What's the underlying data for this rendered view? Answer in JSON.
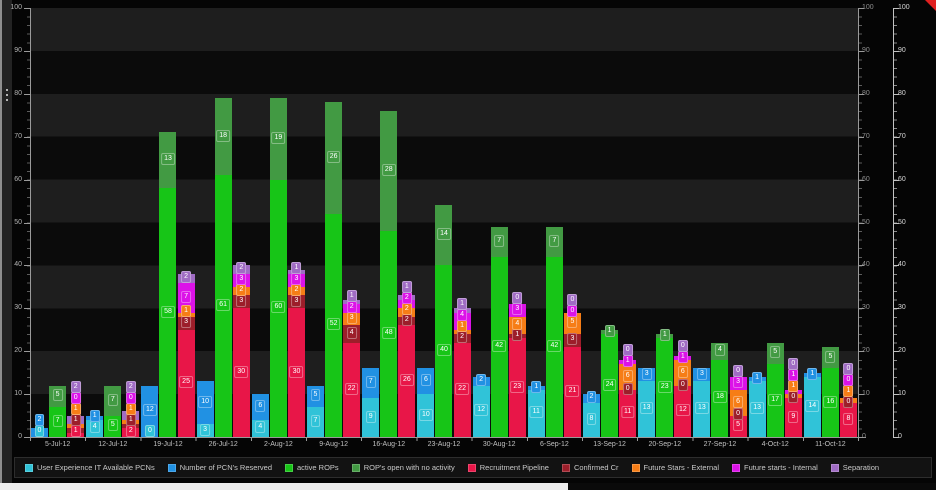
{
  "chart_data": {
    "type": "bar",
    "stacked": true,
    "grouped_stacks": true,
    "title": "",
    "xlabel": "",
    "ylabel": "",
    "ylim": [
      0,
      100
    ],
    "ytick_step": 10,
    "grid": "banded",
    "legend_position": "bottom",
    "categories": [
      "5-Jul-12",
      "12-Jul-12",
      "19-Jul-12",
      "26-Jul-12",
      "2-Aug-12",
      "9-Aug-12",
      "16-Aug-12",
      "23-Aug-12",
      "30-Aug-12",
      "6-Sep-12",
      "13-Sep-12",
      "20-Sep-12",
      "27-Sep-12",
      "4-Oct-12",
      "11-Oct-12"
    ],
    "series": [
      {
        "name": "User Experience IT Available PCNs",
        "color": "#30c3d8",
        "stack": "pcn",
        "values": [
          0,
          4,
          0,
          3,
          4,
          7,
          9,
          10,
          12,
          11,
          8,
          13,
          13,
          13,
          14
        ]
      },
      {
        "name": "Number of PCN's Reserved",
        "color": "#2191e3",
        "stack": "pcn",
        "values": [
          2,
          1,
          12,
          10,
          6,
          5,
          7,
          6,
          2,
          1,
          2,
          3,
          3,
          1,
          1
        ]
      },
      {
        "name": "active ROPs",
        "color": "#17c517",
        "stack": "rop",
        "values": [
          7,
          5,
          58,
          61,
          60,
          52,
          48,
          40,
          42,
          42,
          24,
          23,
          18,
          17,
          16
        ]
      },
      {
        "name": "ROP's open with no activity",
        "color": "#429a43",
        "stack": "rop",
        "values": [
          5,
          7,
          13,
          18,
          19,
          26,
          28,
          14,
          7,
          7,
          1,
          1,
          4,
          5,
          5
        ]
      },
      {
        "name": "Recruitment Pipeline",
        "color": "#e81648",
        "stack": "rec",
        "values": [
          1,
          2,
          25,
          30,
          30,
          22,
          26,
          22,
          23,
          21,
          11,
          12,
          5,
          9,
          8
        ]
      },
      {
        "name": "Confirmed Cr",
        "color": "#9c1e2a",
        "stack": "rec",
        "values": [
          1,
          1,
          3,
          3,
          3,
          4,
          2,
          2,
          1,
          3,
          0,
          0,
          0,
          0,
          0
        ]
      },
      {
        "name": "Future Stars - External",
        "color": "#f67d16",
        "stack": "rec",
        "values": [
          1,
          1,
          1,
          2,
          2,
          3,
          2,
          1,
          4,
          5,
          6,
          6,
          6,
          1,
          1
        ]
      },
      {
        "name": "Future starts - Internal",
        "color": "#dc12e8",
        "stack": "rec",
        "values": [
          0,
          0,
          7,
          3,
          3,
          2,
          2,
          4,
          3,
          0,
          1,
          1,
          3,
          1,
          0
        ]
      },
      {
        "name": "Separation",
        "color": "#a06cc4",
        "stack": "rec",
        "values": [
          2,
          2,
          2,
          2,
          1,
          1,
          1,
          1,
          0,
          0,
          0,
          0,
          0,
          0,
          0
        ]
      }
    ]
  },
  "decorations": {
    "corner_marker_color": "#e02020"
  }
}
